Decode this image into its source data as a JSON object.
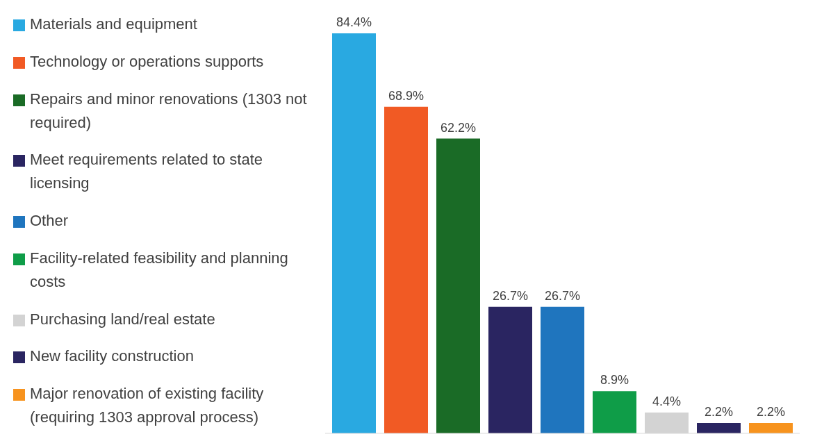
{
  "chart_data": {
    "type": "bar",
    "categories": [
      null
    ],
    "series": [
      {
        "name": "Materials and equipment",
        "color": "#29a9e1",
        "values": [
          84.4
        ],
        "value_labels": [
          "84.4%"
        ]
      },
      {
        "name": "Technology or operations supports",
        "color": "#f15a24",
        "values": [
          68.9
        ],
        "value_labels": [
          "68.9%"
        ]
      },
      {
        "name": "Repairs and minor renovations (1303 not required)",
        "color": "#1a6b26",
        "values": [
          62.2
        ],
        "value_labels": [
          "62.2%"
        ]
      },
      {
        "name": "Meet requirements related to state licensing",
        "color": "#2a2561",
        "values": [
          26.7
        ],
        "value_labels": [
          "26.7%"
        ]
      },
      {
        "name": "Other",
        "color": "#1f75be",
        "values": [
          26.7
        ],
        "value_labels": [
          "26.7%"
        ]
      },
      {
        "name": "Facility-related feasibility and planning costs",
        "color": "#0f9d48",
        "values": [
          8.9
        ],
        "value_labels": [
          "8.9%"
        ]
      },
      {
        "name": "Purchasing land/real estate",
        "color": "#d3d3d3",
        "values": [
          4.4
        ],
        "value_labels": [
          "4.4%"
        ]
      },
      {
        "name": "New facility construction",
        "color": "#2a2561",
        "values": [
          2.2
        ],
        "value_labels": [
          "2.2%"
        ]
      },
      {
        "name": "Major renovation of existing facility (requiring 1303 approval process)",
        "color": "#f7931e",
        "values": [
          2.2
        ],
        "value_labels": [
          "2.2%"
        ]
      }
    ],
    "legend": "left"
  }
}
